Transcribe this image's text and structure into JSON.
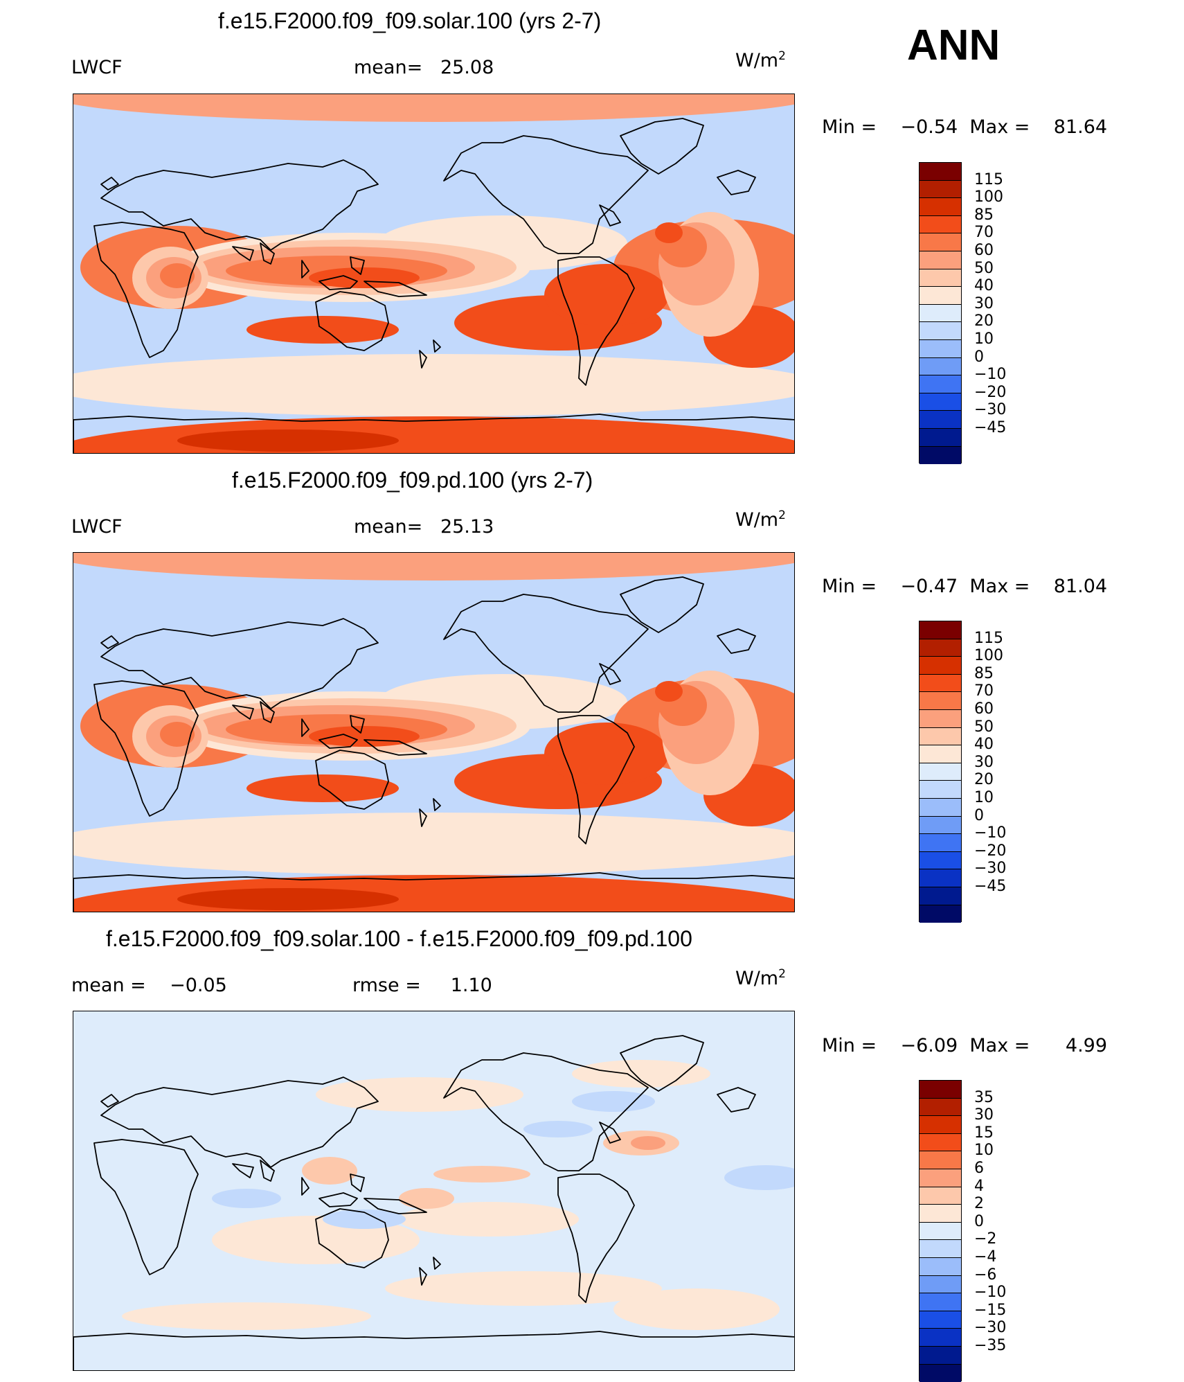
{
  "season": "ANN",
  "panels": [
    {
      "title": "f.e15.F2000.f09_f09.solar.100 (yrs 2-7)",
      "variable": "LWCF",
      "stat1_label": "mean=",
      "stat1_value": "25.08",
      "units": "W/m",
      "units_exp": "2",
      "min_label": "Min =",
      "min_value": "−0.54",
      "max_label": "Max =",
      "max_value": "81.64",
      "colorbar_labels": [
        "115",
        "100",
        "85",
        "70",
        "60",
        "50",
        "40",
        "30",
        "20",
        "10",
        "0",
        "−10",
        "−20",
        "−30",
        "−45"
      ]
    },
    {
      "title": "f.e15.F2000.f09_f09.pd.100 (yrs 2-7)",
      "variable": "LWCF",
      "stat1_label": "mean=",
      "stat1_value": "25.13",
      "units": "W/m",
      "units_exp": "2",
      "min_label": "Min =",
      "min_value": "−0.47",
      "max_label": "Max =",
      "max_value": "81.04",
      "colorbar_labels": [
        "115",
        "100",
        "85",
        "70",
        "60",
        "50",
        "40",
        "30",
        "20",
        "10",
        "0",
        "−10",
        "−20",
        "−30",
        "−45"
      ]
    },
    {
      "title": "f.e15.F2000.f09_f09.solar.100 - f.e15.F2000.f09_f09.pd.100",
      "stat1_label": "mean =",
      "stat1_value": "−0.05",
      "stat2_label": "rmse =",
      "stat2_value": "1.10",
      "units": "W/m",
      "units_exp": "2",
      "min_label": "Min =",
      "min_value": "−6.09",
      "max_label": "Max =",
      "max_value": "4.99",
      "colorbar_labels": [
        "35",
        "30",
        "15",
        "10",
        "6",
        "4",
        "2",
        "0",
        "−2",
        "−4",
        "−6",
        "−10",
        "−15",
        "−30",
        "−35"
      ]
    }
  ],
  "colors": {
    "scale": [
      "#7a0000",
      "#b21f00",
      "#d63000",
      "#f24d1a",
      "#f87848",
      "#fba07d",
      "#fdc8ab",
      "#fde7d6",
      "#deecfb",
      "#c2d9fc",
      "#9bbdfa",
      "#6f9cf6",
      "#3f74f3",
      "#1a4fe6",
      "#0a32c4",
      "#001a8f",
      "#000a66"
    ]
  },
  "chart_data": [
    {
      "type": "heatmap",
      "title": "f.e15.F2000.f09_f09.solar.100 (yrs 2-7)",
      "variable": "LWCF",
      "units": "W/m2",
      "mean": 25.08,
      "min": -0.54,
      "max": 81.64,
      "levels": [
        -45,
        -30,
        -20,
        -10,
        0,
        10,
        20,
        30,
        40,
        50,
        60,
        70,
        85,
        100,
        115
      ]
    },
    {
      "type": "heatmap",
      "title": "f.e15.F2000.f09_f09.pd.100 (yrs 2-7)",
      "variable": "LWCF",
      "units": "W/m2",
      "mean": 25.13,
      "min": -0.47,
      "max": 81.04,
      "levels": [
        -45,
        -30,
        -20,
        -10,
        0,
        10,
        20,
        30,
        40,
        50,
        60,
        70,
        85,
        100,
        115
      ]
    },
    {
      "type": "heatmap",
      "title": "f.e15.F2000.f09_f09.solar.100 - f.e15.F2000.f09_f09.pd.100",
      "units": "W/m2",
      "mean": -0.05,
      "rmse": 1.1,
      "min": -6.09,
      "max": 4.99,
      "levels": [
        -35,
        -30,
        -15,
        -10,
        -6,
        -4,
        -2,
        0,
        2,
        4,
        6,
        10,
        15,
        30,
        35
      ]
    }
  ]
}
